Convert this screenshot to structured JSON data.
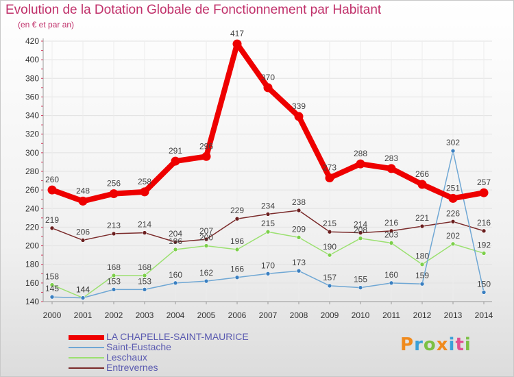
{
  "title": "Evolution de la Dotation Globale de Fonctionnement par Habitant",
  "subtitle": "(en € et par an)",
  "logo": {
    "text": "Proxiti",
    "colors": [
      "#f08a1c",
      "#3aa0d8",
      "#7bc043",
      "#f08a1c",
      "#3aa0d8",
      "#e05090",
      "#7bc043"
    ]
  },
  "chart_data": {
    "type": "line",
    "title": "Evolution de la Dotation Globale de Fonctionnement par Habitant",
    "subtitle": "(en € et par an)",
    "x": [
      2000,
      2001,
      2002,
      2003,
      2004,
      2005,
      2006,
      2007,
      2008,
      2009,
      2010,
      2011,
      2012,
      2013,
      2014
    ],
    "ylim": [
      140,
      420
    ],
    "yticks": [
      140,
      160,
      180,
      200,
      220,
      240,
      260,
      280,
      300,
      320,
      340,
      360,
      380,
      400,
      420
    ],
    "grid": true,
    "legend_position": "bottom-left",
    "series": [
      {
        "name": "LA CHAPELLE-SAINT-MAURICE",
        "color": "#ee0000",
        "marker": "#ee0000",
        "values": [
          260,
          248,
          256,
          258,
          291,
          296,
          417,
          370,
          339,
          273,
          288,
          283,
          266,
          251,
          257
        ]
      },
      {
        "name": "Saint-Eustache",
        "color": "#6fa7d4",
        "marker": "#3a7fc0",
        "values": [
          145,
          144,
          153,
          153,
          160,
          162,
          166,
          170,
          173,
          157,
          155,
          160,
          159,
          302,
          150
        ]
      },
      {
        "name": "Leschaux",
        "color": "#9be070",
        "marker": "#7ccf4a",
        "values": [
          158,
          144,
          168,
          168,
          196,
          200,
          196,
          215,
          209,
          190,
          208,
          203,
          180,
          202,
          192
        ]
      },
      {
        "name": "Entrevernes",
        "color": "#7a2a2a",
        "marker": "#6a1e1e",
        "values": [
          219,
          206,
          213,
          214,
          204,
          207,
          229,
          234,
          238,
          215,
          214,
          216,
          221,
          226,
          216
        ]
      }
    ]
  }
}
